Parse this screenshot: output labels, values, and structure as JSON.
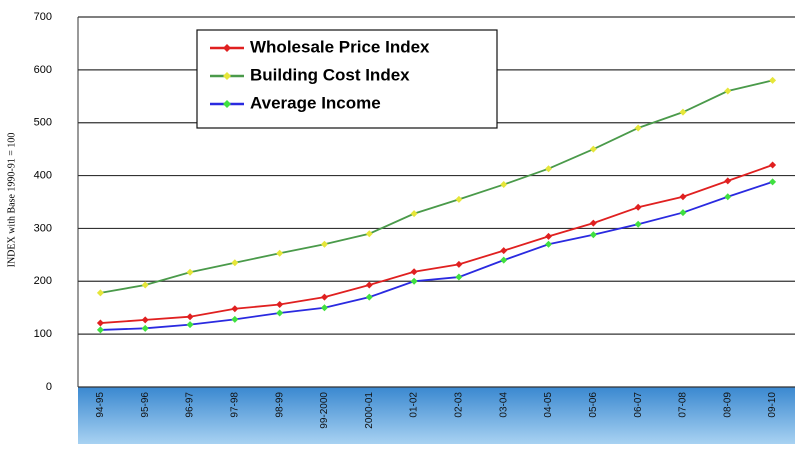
{
  "chart_data": {
    "type": "line",
    "y_label": "INDEX with Base 1990-91 = 100",
    "categories": [
      "94-95",
      "95-96",
      "96-97",
      "97-98",
      "98-99",
      "99-2000",
      "2000-01",
      "01-02",
      "02-03",
      "03-04",
      "04-05",
      "05-06",
      "06-07",
      "07-08",
      "08-09",
      "09-10"
    ],
    "series": [
      {
        "name": "Wholesale Price Index",
        "color": "#e02020",
        "marker_color": "#e02020",
        "values": [
          121,
          127,
          133,
          148,
          156,
          170,
          193,
          218,
          232,
          258,
          285,
          310,
          340,
          360,
          390,
          420
        ]
      },
      {
        "name": "Building Cost Index",
        "color": "#4a9a4a",
        "marker_color": "#e6e63a",
        "values": [
          178,
          193,
          217,
          235,
          253,
          270,
          290,
          328,
          355,
          383,
          413,
          450,
          490,
          520,
          560,
          580
        ]
      },
      {
        "name": "Average Income",
        "color": "#2a2ae0",
        "marker_color": "#40e040",
        "values": [
          108,
          111,
          118,
          128,
          140,
          150,
          170,
          200,
          208,
          240,
          270,
          288,
          308,
          330,
          360,
          388
        ]
      }
    ],
    "ylim": [
      0,
      700
    ],
    "yticks": [
      0,
      100,
      200,
      300,
      400,
      500,
      600,
      700
    ],
    "grid": true
  }
}
